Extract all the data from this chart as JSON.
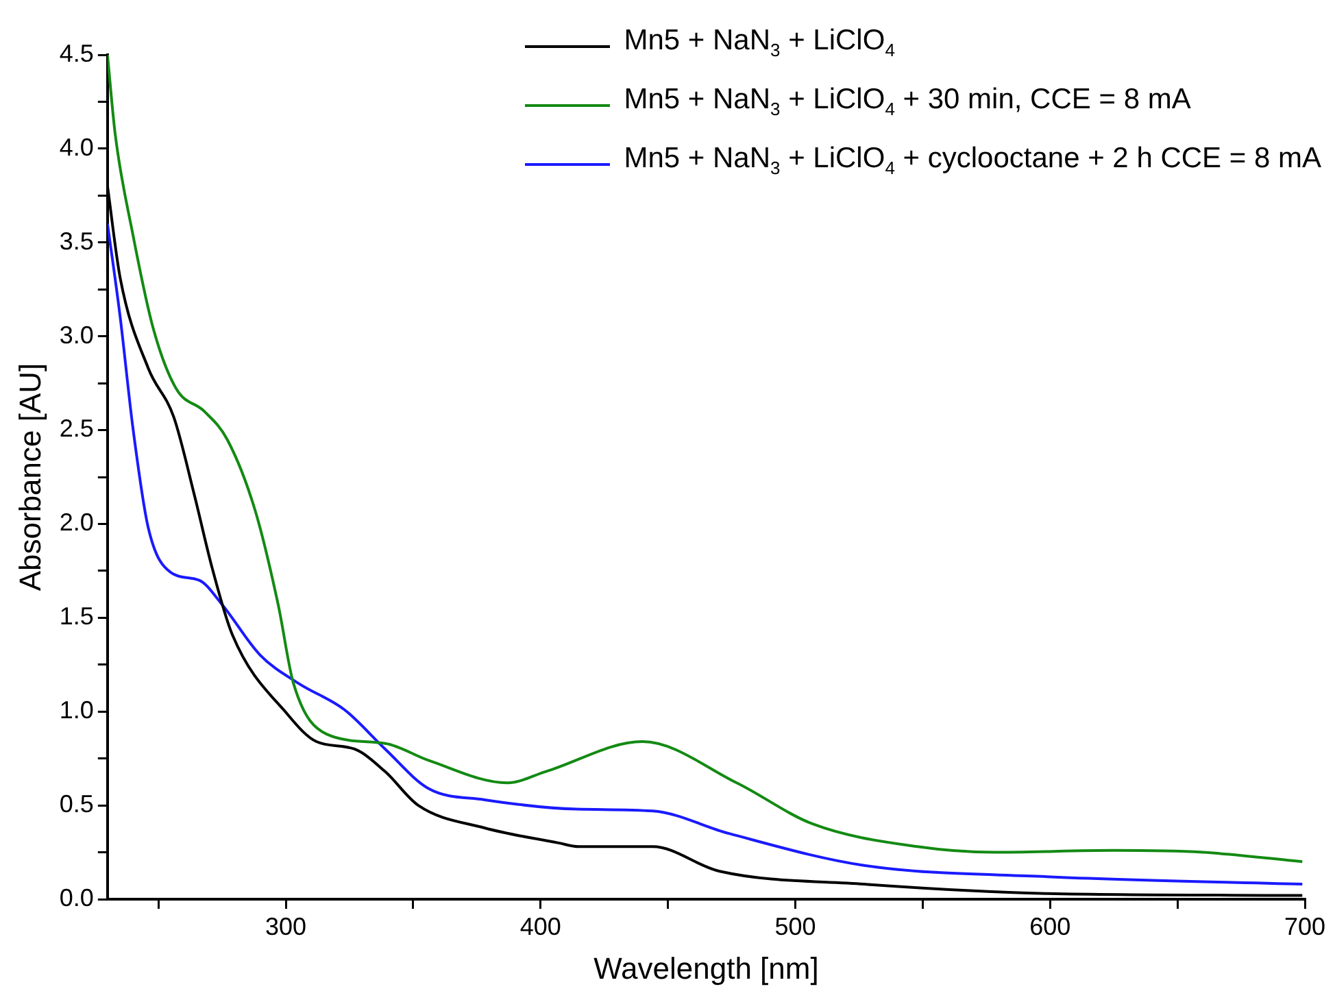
{
  "chart_data": {
    "type": "line",
    "xlabel": "Wavelength [nm]",
    "ylabel": "Absorbance [AU]",
    "xlim": [
      230,
      700
    ],
    "ylim": [
      0,
      4.5
    ],
    "xticks": [
      {
        "value": 250,
        "label": null
      },
      300,
      {
        "value": 350,
        "label": null
      },
      400,
      {
        "value": 450,
        "label": null
      },
      500,
      {
        "value": 550,
        "label": null
      },
      600,
      {
        "value": 650,
        "label": null
      },
      700
    ],
    "yticks": [
      {
        "value": 0,
        "label": "0.0"
      },
      {
        "value": 0.25,
        "label": null
      },
      {
        "value": 0.5,
        "label": "0.5"
      },
      {
        "value": 0.75,
        "label": null
      },
      {
        "value": 1,
        "label": "1.0"
      },
      {
        "value": 1.25,
        "label": null
      },
      {
        "value": 1.5,
        "label": "1.5"
      },
      {
        "value": 1.75,
        "label": null
      },
      {
        "value": 2,
        "label": "2.0"
      },
      {
        "value": 2.25,
        "label": null
      },
      {
        "value": 2.5,
        "label": "2.5"
      },
      {
        "value": 2.75,
        "label": null
      },
      {
        "value": 3,
        "label": "3.0"
      },
      {
        "value": 3.25,
        "label": null
      },
      {
        "value": 3.5,
        "label": "3.5"
      },
      {
        "value": 3.75,
        "label": null
      },
      {
        "value": 4,
        "label": "4.0"
      },
      {
        "value": 4.25,
        "label": null
      },
      {
        "value": 4.5,
        "label": "4.5"
      }
    ],
    "grid": false,
    "legend": "top right",
    "marker": "none",
    "line_style": "solid",
    "series": [
      {
        "name": "Mn5 + NaN$_{3}$ + LiClO$_{4}$",
        "color": "#000000",
        "x": [
          230,
          235,
          246,
          256,
          264,
          271,
          279,
          301,
          312,
          327,
          339,
          352,
          378,
          407,
          415,
          444,
          470,
          527,
          599,
          699
        ],
        "values": [
          3.8,
          3.31,
          2.83,
          2.57,
          2.16,
          1.77,
          1.41,
          0.98,
          0.84,
          0.8,
          0.68,
          0.5,
          0.38,
          0.3,
          0.28,
          0.28,
          0.15,
          0.08,
          0.03,
          0.02
        ]
      },
      {
        "name": "Mn5 + NaN$_{3}$ + LiClO$_{4}$ + 30 min, CCE = 8 mA",
        "color": "#138a13",
        "x": [
          230,
          233,
          240,
          248,
          257,
          268,
          277,
          288,
          297,
          303,
          316,
          339,
          356,
          387,
          402,
          440,
          477,
          507,
          548,
          578,
          625,
          660,
          699
        ],
        "values": [
          4.5,
          4.08,
          3.54,
          3.04,
          2.72,
          2.6,
          2.45,
          2.07,
          1.57,
          1.15,
          0.88,
          0.83,
          0.74,
          0.62,
          0.68,
          0.84,
          0.62,
          0.4,
          0.28,
          0.25,
          0.26,
          0.25,
          0.2
        ]
      },
      {
        "name": "Mn5 + NaN$_{3}$ + LiClO$_{4}$ + cyclooctane + 2 h CCE = 8 mA",
        "color": "#1a1aff",
        "x": [
          230,
          235,
          240,
          246,
          255,
          266,
          275,
          290,
          305,
          323,
          339,
          356,
          378,
          414,
          444,
          474,
          527,
          599,
          699
        ],
        "values": [
          3.6,
          3.1,
          2.51,
          1.98,
          1.74,
          1.7,
          1.57,
          1.3,
          1.15,
          1.01,
          0.8,
          0.59,
          0.53,
          0.48,
          0.47,
          0.35,
          0.18,
          0.12,
          0.08
        ]
      }
    ]
  }
}
